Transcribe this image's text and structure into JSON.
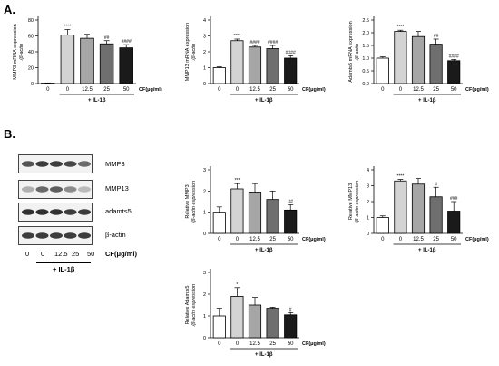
{
  "panel_a_label": "A.",
  "panel_b_label": "B.",
  "groups": [
    "0",
    "0",
    "12.5",
    "25",
    "50"
  ],
  "cf_label": "CF(μg/ml)",
  "il_label": "+ IL-1β",
  "blot": {
    "rows": [
      "MMP3",
      "MMP13",
      "adamts5",
      "β-actin"
    ],
    "lanes": [
      "0",
      "0",
      "12.5",
      "25",
      "50"
    ]
  },
  "colors": [
    "#ffffff",
    "#d3d3d3",
    "#a6a6a6",
    "#6f6f6f",
    "#1a1a1a"
  ],
  "chart_data": [
    {
      "type": "bar",
      "panel": "A",
      "ylabel1": "MMP3 mRNA expression",
      "ylabel2": "/β-actin",
      "categories": [
        "0",
        "0",
        "12.5",
        "25",
        "50"
      ],
      "values": [
        0.5,
        61,
        57,
        50,
        45
      ],
      "errors": [
        0.3,
        7,
        5,
        4,
        4
      ],
      "sig": [
        "",
        "****",
        "",
        "##",
        "####"
      ],
      "ylim": [
        0,
        80
      ],
      "yticks": [
        0,
        20,
        40,
        60,
        80
      ]
    },
    {
      "type": "bar",
      "panel": "A",
      "ylabel1": "MMP13 mRNA expression",
      "ylabel2": "/β-actin",
      "categories": [
        "0",
        "0",
        "12.5",
        "25",
        "50"
      ],
      "values": [
        1.0,
        2.7,
        2.3,
        2.2,
        1.6
      ],
      "errors": [
        0.05,
        0.1,
        0.1,
        0.2,
        0.15
      ],
      "sig": [
        "",
        "****",
        "####",
        "####",
        "####"
      ],
      "ylim": [
        0,
        4
      ],
      "yticks": [
        0,
        1,
        2,
        3,
        4
      ]
    },
    {
      "type": "bar",
      "panel": "A",
      "ylabel1": "Adamts5 mRNA expression",
      "ylabel2": "/β-actin",
      "categories": [
        "0",
        "0",
        "12.5",
        "25",
        "50"
      ],
      "values": [
        1.0,
        2.05,
        1.85,
        1.55,
        0.9
      ],
      "errors": [
        0.05,
        0.05,
        0.2,
        0.2,
        0.05
      ],
      "sig": [
        "",
        "****",
        "",
        "##",
        "####"
      ],
      "ylim": [
        0,
        2.5
      ],
      "yticks": [
        0.0,
        0.5,
        1.0,
        1.5,
        2.0,
        2.5
      ]
    },
    {
      "type": "bar",
      "panel": "B",
      "ylabel1": "Relative MMP3",
      "ylabel2": "/β-actin expression",
      "categories": [
        "0",
        "0",
        "12.5",
        "25",
        "50"
      ],
      "values": [
        1.0,
        2.1,
        1.95,
        1.6,
        1.1
      ],
      "errors": [
        0.25,
        0.25,
        0.4,
        0.4,
        0.25
      ],
      "sig": [
        "",
        "***",
        "",
        "",
        "##"
      ],
      "ylim": [
        0,
        3
      ],
      "yticks": [
        0,
        1,
        2,
        3
      ]
    },
    {
      "type": "bar",
      "panel": "B",
      "ylabel1": "Relative MMP13",
      "ylabel2": "/β-actin expression",
      "categories": [
        "0",
        "0",
        "12.5",
        "25",
        "50"
      ],
      "values": [
        1.0,
        3.3,
        3.1,
        2.3,
        1.4
      ],
      "errors": [
        0.1,
        0.1,
        0.35,
        0.6,
        0.6
      ],
      "sig": [
        "",
        "****",
        "",
        "#",
        "###"
      ],
      "ylim": [
        0,
        4
      ],
      "yticks": [
        0,
        1,
        2,
        3,
        4
      ]
    },
    {
      "type": "bar",
      "panel": "B",
      "ylabel1": "Relative Adamts5",
      "ylabel2": "/β-actin expression",
      "categories": [
        "0",
        "0",
        "12.5",
        "25",
        "50"
      ],
      "values": [
        1.0,
        1.9,
        1.5,
        1.35,
        1.05
      ],
      "errors": [
        0.35,
        0.4,
        0.35,
        0.05,
        0.1
      ],
      "sig": [
        "",
        "*",
        "",
        "",
        "#"
      ],
      "ylim": [
        0,
        3
      ],
      "yticks": [
        0,
        1,
        2,
        3
      ]
    }
  ]
}
